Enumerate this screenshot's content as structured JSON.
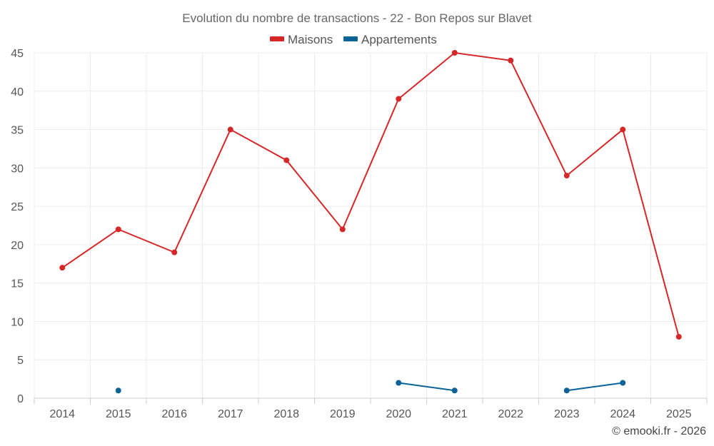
{
  "chart_data": {
    "type": "line",
    "title": "Evolution du nombre de transactions - 22 - Bon Repos sur Blavet",
    "categories": [
      "2014",
      "2015",
      "2016",
      "2017",
      "2018",
      "2019",
      "2020",
      "2021",
      "2022",
      "2023",
      "2024",
      "2025"
    ],
    "ylim": [
      0,
      45
    ],
    "yticks": [
      "0",
      "5",
      "10",
      "15",
      "20",
      "25",
      "30",
      "35",
      "40",
      "45"
    ],
    "grid": true,
    "legend": "top-center",
    "series": [
      {
        "name": "Maisons",
        "color": "#d62728",
        "values": [
          17,
          22,
          19,
          35,
          31,
          22,
          39,
          45,
          44,
          29,
          35,
          8
        ]
      },
      {
        "name": "Appartements",
        "color": "#0a6296",
        "values": [
          null,
          1,
          null,
          null,
          null,
          null,
          2,
          1,
          null,
          1,
          2,
          null
        ]
      }
    ]
  },
  "credit": "© emooki.fr - 2026"
}
